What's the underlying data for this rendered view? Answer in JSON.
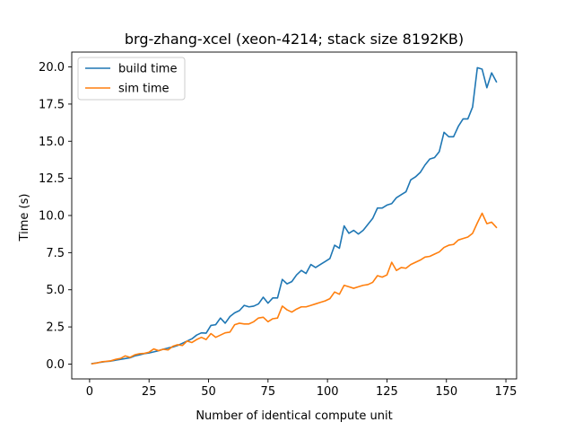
{
  "chart_data": {
    "type": "line",
    "title": "brg-zhang-xcel (xeon-4214; stack size 8192KB)",
    "xlabel": "Number of identical compute unit",
    "ylabel": "Time (s)",
    "xlim": [
      -7.5,
      179.5
    ],
    "ylim": [
      -1.0,
      21.0
    ],
    "xticks": [
      0,
      25,
      50,
      75,
      100,
      125,
      150,
      175
    ],
    "yticks": [
      0.0,
      2.5,
      5.0,
      7.5,
      10.0,
      12.5,
      15.0,
      17.5,
      20.0
    ],
    "ytick_labels": [
      "0.0",
      "2.5",
      "5.0",
      "7.5",
      "10.0",
      "12.5",
      "15.0",
      "17.5",
      "20.0"
    ],
    "grid": false,
    "legend_position": "top-left",
    "series": [
      {
        "name": "build time",
        "color": "#1f77b4",
        "x": [
          1,
          3,
          5,
          7,
          9,
          11,
          13,
          15,
          17,
          19,
          21,
          23,
          25,
          27,
          29,
          31,
          33,
          35,
          37,
          39,
          41,
          43,
          45,
          47,
          49,
          51,
          53,
          55,
          57,
          59,
          61,
          63,
          65,
          67,
          69,
          71,
          73,
          75,
          77,
          79,
          81,
          83,
          85,
          87,
          89,
          91,
          93,
          95,
          97,
          99,
          101,
          103,
          105,
          107,
          109,
          111,
          113,
          115,
          117,
          119,
          121,
          123,
          125,
          127,
          129,
          131,
          133,
          135,
          137,
          139,
          141,
          143,
          145,
          147,
          149,
          151,
          153,
          155,
          157,
          159,
          161,
          163,
          165,
          167,
          169,
          171
        ],
        "values": [
          0.03,
          0.08,
          0.13,
          0.17,
          0.2,
          0.26,
          0.32,
          0.37,
          0.42,
          0.55,
          0.62,
          0.7,
          0.75,
          0.82,
          0.9,
          1.0,
          1.08,
          1.15,
          1.25,
          1.4,
          1.55,
          1.7,
          1.95,
          2.1,
          2.08,
          2.6,
          2.65,
          3.1,
          2.75,
          3.2,
          3.45,
          3.6,
          3.95,
          3.85,
          3.9,
          4.05,
          4.5,
          4.1,
          4.45,
          4.45,
          5.7,
          5.4,
          5.55,
          6.0,
          6.3,
          6.1,
          6.7,
          6.5,
          6.7,
          6.9,
          7.1,
          8.0,
          7.8,
          9.3,
          8.8,
          9.0,
          8.75,
          9.0,
          9.4,
          9.8,
          10.5,
          10.5,
          10.7,
          10.8,
          11.2,
          11.4,
          11.6,
          12.4,
          12.6,
          12.9,
          13.4,
          13.8,
          13.9,
          14.3,
          15.6,
          15.3,
          15.3,
          16.0,
          16.5,
          16.5,
          17.3,
          19.95,
          19.85,
          18.6,
          19.6,
          19.0
        ]
      },
      {
        "name": "sim time",
        "color": "#ff7f0e",
        "x": [
          1,
          3,
          5,
          7,
          9,
          11,
          13,
          15,
          17,
          19,
          21,
          23,
          25,
          27,
          29,
          31,
          33,
          35,
          37,
          39,
          41,
          43,
          45,
          47,
          49,
          51,
          53,
          55,
          57,
          59,
          61,
          63,
          65,
          67,
          69,
          71,
          73,
          75,
          77,
          79,
          81,
          83,
          85,
          87,
          89,
          91,
          93,
          95,
          97,
          99,
          101,
          103,
          105,
          107,
          109,
          111,
          113,
          115,
          117,
          119,
          121,
          123,
          125,
          127,
          129,
          131,
          133,
          135,
          137,
          139,
          141,
          143,
          145,
          147,
          149,
          151,
          153,
          155,
          157,
          159,
          161,
          163,
          165,
          167,
          169,
          171
        ],
        "values": [
          0.02,
          0.07,
          0.15,
          0.18,
          0.22,
          0.32,
          0.38,
          0.55,
          0.45,
          0.62,
          0.7,
          0.72,
          0.8,
          1.02,
          0.9,
          1.0,
          0.95,
          1.2,
          1.3,
          1.25,
          1.55,
          1.45,
          1.65,
          1.8,
          1.65,
          2.05,
          1.8,
          1.95,
          2.1,
          2.15,
          2.65,
          2.75,
          2.7,
          2.7,
          2.85,
          3.1,
          3.15,
          2.85,
          3.05,
          3.1,
          3.9,
          3.65,
          3.5,
          3.7,
          3.85,
          3.85,
          3.95,
          4.05,
          4.15,
          4.25,
          4.4,
          4.85,
          4.7,
          5.3,
          5.2,
          5.1,
          5.2,
          5.3,
          5.35,
          5.5,
          5.95,
          5.85,
          6.0,
          6.85,
          6.3,
          6.5,
          6.45,
          6.7,
          6.85,
          7.0,
          7.2,
          7.25,
          7.4,
          7.55,
          7.85,
          8.0,
          8.05,
          8.35,
          8.45,
          8.55,
          8.8,
          9.5,
          10.15,
          9.45,
          9.55,
          9.2
        ]
      }
    ]
  }
}
